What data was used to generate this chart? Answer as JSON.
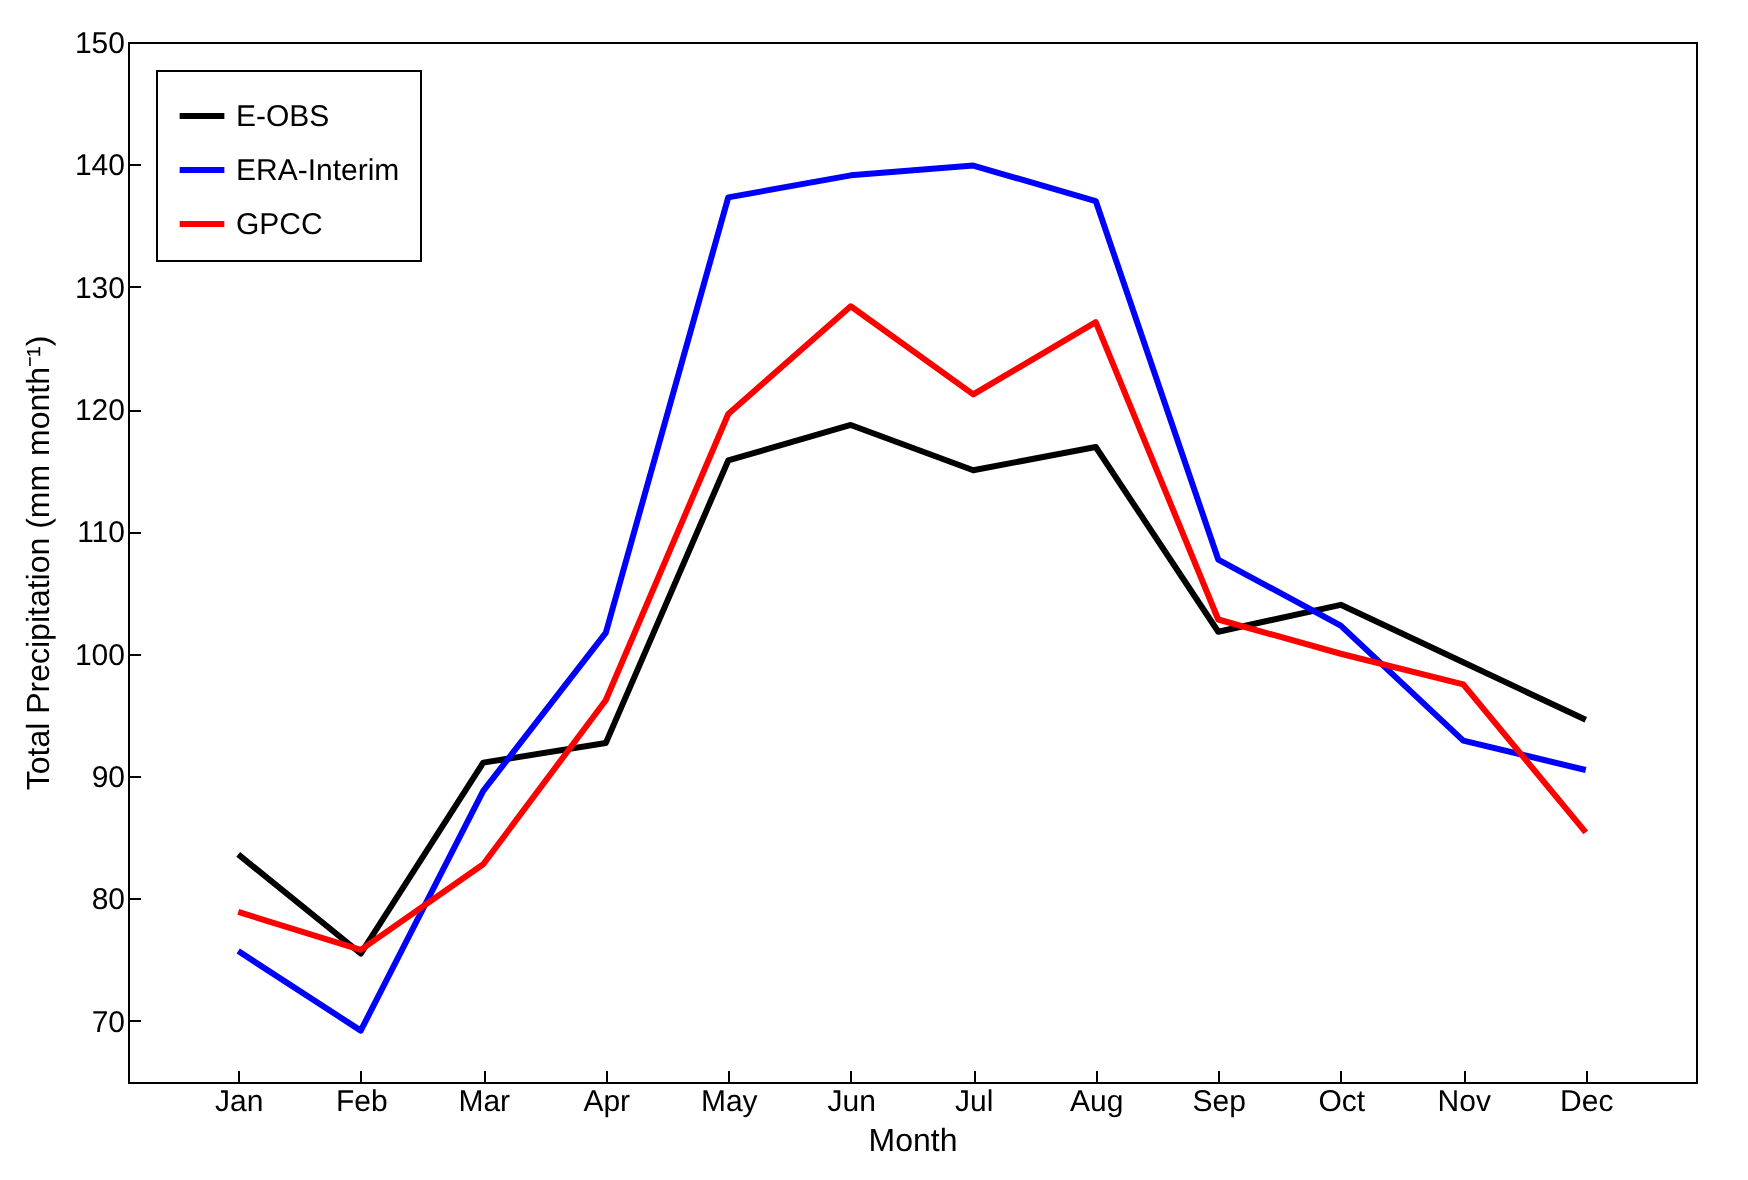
{
  "chart_data": {
    "type": "line",
    "xlabel": "Month",
    "ylabel": "Total Precipitation (mm month⁻¹)",
    "categories": [
      "Jan",
      "Feb",
      "Mar",
      "Apr",
      "May",
      "Jun",
      "Jul",
      "Aug",
      "Sep",
      "Oct",
      "Nov",
      "Dec"
    ],
    "series": [
      {
        "name": "E-OBS",
        "color": "#000000",
        "values": [
          83.6,
          75.5,
          91.1,
          92.7,
          115.8,
          118.7,
          115.0,
          116.9,
          101.8,
          104.0,
          99.3,
          94.6
        ]
      },
      {
        "name": "ERA-Interim",
        "color": "#0000ff",
        "values": [
          75.7,
          69.2,
          88.8,
          101.7,
          137.3,
          139.1,
          139.9,
          137.0,
          107.7,
          102.3,
          92.9,
          90.5
        ]
      },
      {
        "name": "GPCC",
        "color": "#ff0000",
        "values": [
          78.9,
          75.8,
          82.8,
          96.2,
          119.6,
          128.4,
          121.2,
          127.1,
          102.8,
          100.0,
          97.5,
          85.4
        ]
      }
    ],
    "ylim": [
      65,
      150
    ],
    "yticks": [
      70,
      80,
      90,
      100,
      110,
      120,
      130,
      140,
      150
    ],
    "grid": false,
    "legend": "top left",
    "marker": "none",
    "line_style": "solid"
  }
}
